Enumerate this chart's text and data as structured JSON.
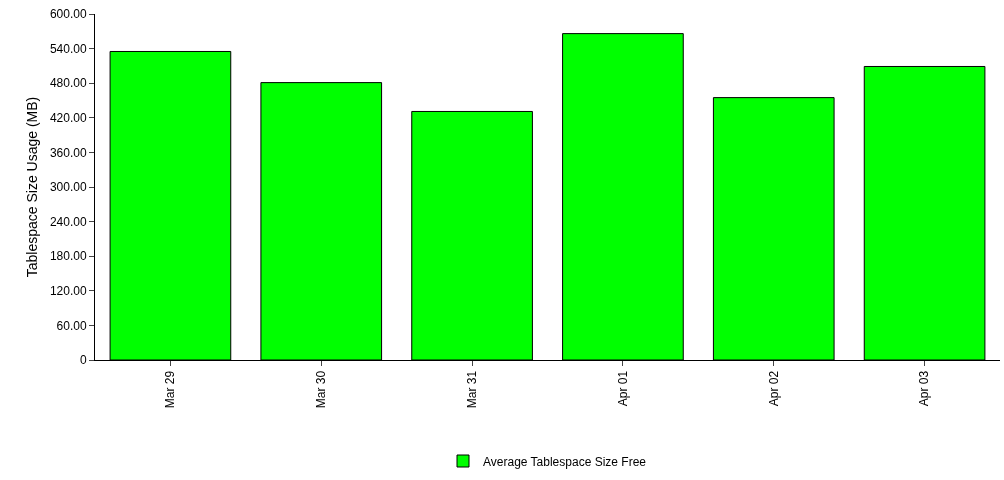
{
  "chart_data": {
    "type": "bar",
    "ylabel": "Tablespace Size Usage (MB)",
    "categories": [
      "Mar 29",
      "Mar 30",
      "Mar 31",
      "Apr 01",
      "Apr 02",
      "Apr 03"
    ],
    "series": [
      {
        "name": "Average Tablespace Size Free",
        "color": "#00ff00",
        "values": [
          535,
          481,
          431,
          566,
          455,
          509
        ]
      }
    ],
    "ylim": [
      0,
      600
    ],
    "yticks": [
      {
        "value": 0,
        "label": "0"
      },
      {
        "value": 60,
        "label": "60.00"
      },
      {
        "value": 120,
        "label": "120.00"
      },
      {
        "value": 180,
        "label": "180.00"
      },
      {
        "value": 240,
        "label": "240.00"
      },
      {
        "value": 300,
        "label": "300.00"
      },
      {
        "value": 360,
        "label": "360.00"
      },
      {
        "value": 420,
        "label": "420.00"
      },
      {
        "value": 480,
        "label": "480.00"
      },
      {
        "value": 540,
        "label": "540.00"
      },
      {
        "value": 600,
        "label": "600.00"
      }
    ],
    "grid": false,
    "legend": "bottom"
  }
}
